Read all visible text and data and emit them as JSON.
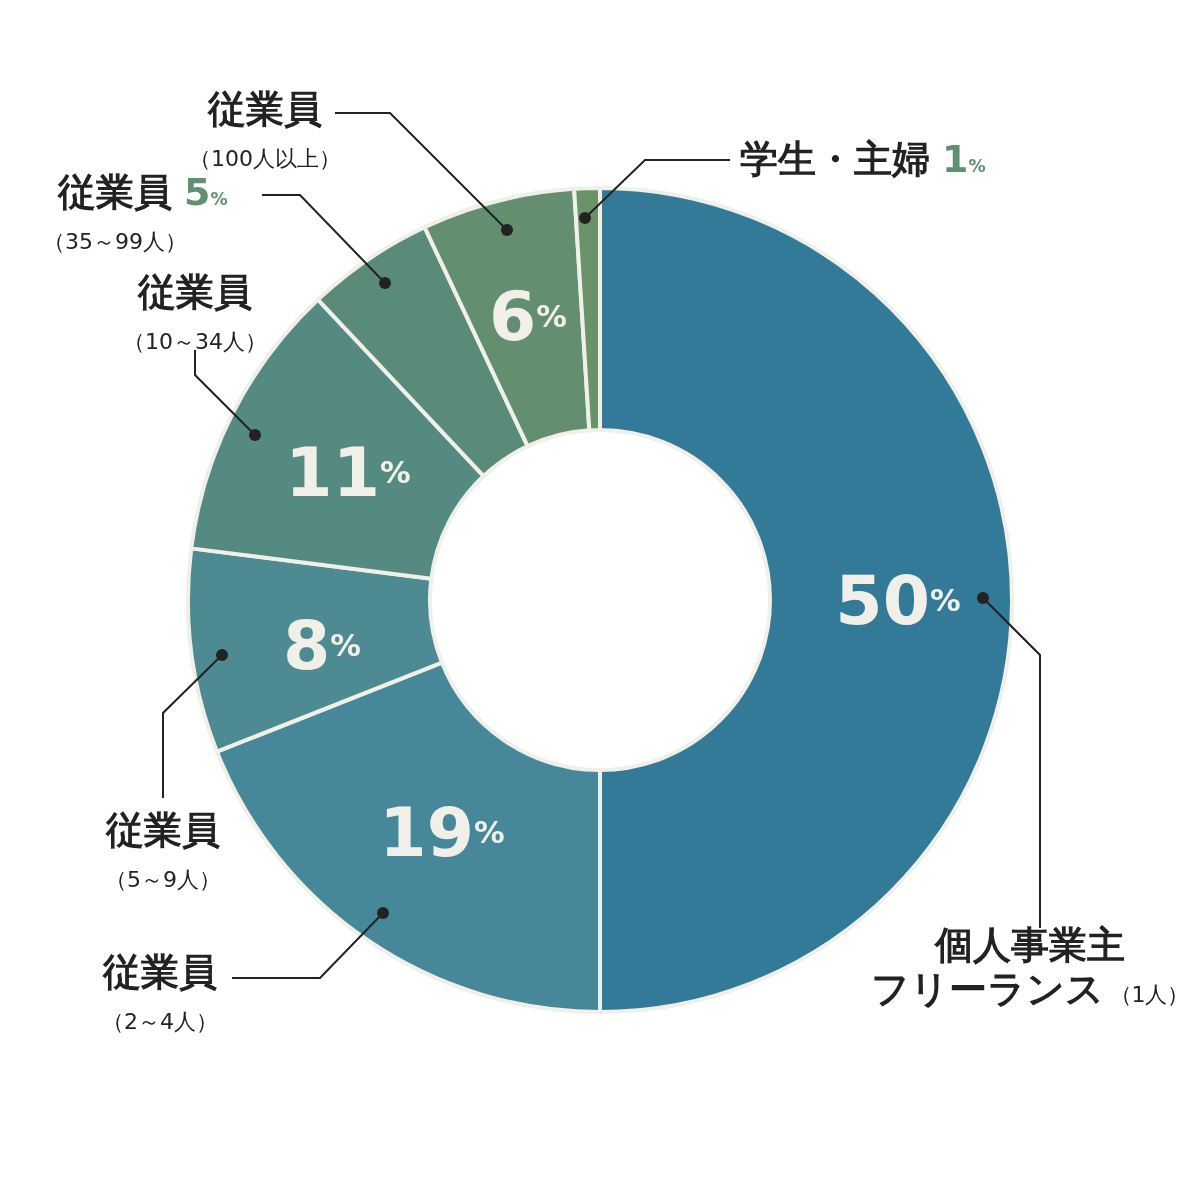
{
  "chart_data": {
    "type": "donut",
    "categories": [
      "個人事業主フリーランス（1人）",
      "従業員（2～4人）",
      "従業員（5～9人）",
      "従業員（10～34人）",
      "従業員（35～99人）",
      "従業員（100人以上）",
      "学生・主婦"
    ],
    "values": [
      50,
      19,
      8,
      11,
      5,
      6,
      1
    ],
    "value_labels": [
      "50%",
      "19%",
      "8%",
      "11%",
      "5%",
      "6%",
      "1%"
    ],
    "colors": [
      "#337a98",
      "#468899",
      "#4e8a92",
      "#548a82",
      "#5a8a78",
      "#638e70",
      "#6a9369"
    ]
  }
}
